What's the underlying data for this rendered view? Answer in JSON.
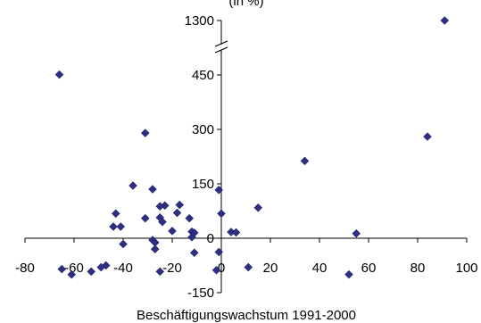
{
  "chart_data": {
    "type": "scatter",
    "title": "(in %)",
    "xlabel": "Beschäftigungswachstum 1991-2000",
    "ylabel": "",
    "xlim": [
      -80,
      100
    ],
    "x_ticks": [
      -80,
      -60,
      -40,
      -20,
      0,
      20,
      40,
      60,
      80,
      100
    ],
    "x_tick_labels": [
      "-80",
      "-60",
      "-40",
      "-20",
      "0",
      "20",
      "40",
      "60",
      "80",
      "100"
    ],
    "y_ticks": [
      -150,
      0,
      150,
      300,
      450,
      1300
    ],
    "y_tick_labels": [
      "-150",
      "0",
      "150",
      "300",
      "450",
      "1300"
    ],
    "y_axis_break": "between 450 and 1300",
    "grid": false,
    "legend": "none",
    "marker_color": "#2e2e82",
    "points": [
      {
        "x": 91,
        "y": 1300
      },
      {
        "x": -66,
        "y": 455
      },
      {
        "x": -31,
        "y": 290
      },
      {
        "x": 84,
        "y": 280
      },
      {
        "x": 34,
        "y": 213
      },
      {
        "x": -36,
        "y": 145
      },
      {
        "x": -28,
        "y": 135
      },
      {
        "x": -1,
        "y": 133
      },
      {
        "x": -23,
        "y": 90
      },
      {
        "x": -25,
        "y": 88
      },
      {
        "x": -17,
        "y": 92
      },
      {
        "x": 15,
        "y": 84
      },
      {
        "x": -43,
        "y": 68
      },
      {
        "x": -18,
        "y": 70
      },
      {
        "x": 0,
        "y": 68
      },
      {
        "x": -31,
        "y": 55
      },
      {
        "x": -25,
        "y": 57
      },
      {
        "x": -13,
        "y": 55
      },
      {
        "x": -24,
        "y": 45
      },
      {
        "x": -44,
        "y": 32
      },
      {
        "x": -41,
        "y": 32
      },
      {
        "x": -20,
        "y": 20
      },
      {
        "x": -12,
        "y": 18
      },
      {
        "x": -11,
        "y": 15
      },
      {
        "x": 4,
        "y": 17
      },
      {
        "x": 6,
        "y": 16
      },
      {
        "x": 55,
        "y": 13
      },
      {
        "x": -12,
        "y": 3
      },
      {
        "x": -28,
        "y": -5
      },
      {
        "x": -27,
        "y": -12
      },
      {
        "x": -40,
        "y": -16
      },
      {
        "x": -27,
        "y": -30
      },
      {
        "x": -1,
        "y": -38
      },
      {
        "x": -11,
        "y": -40
      },
      {
        "x": -47,
        "y": -75
      },
      {
        "x": -49,
        "y": -80
      },
      {
        "x": 11,
        "y": -80
      },
      {
        "x": -65,
        "y": -85
      },
      {
        "x": -2,
        "y": -88
      },
      {
        "x": -53,
        "y": -92
      },
      {
        "x": -25,
        "y": -92
      },
      {
        "x": -61,
        "y": -100
      },
      {
        "x": 52,
        "y": -100
      }
    ]
  }
}
